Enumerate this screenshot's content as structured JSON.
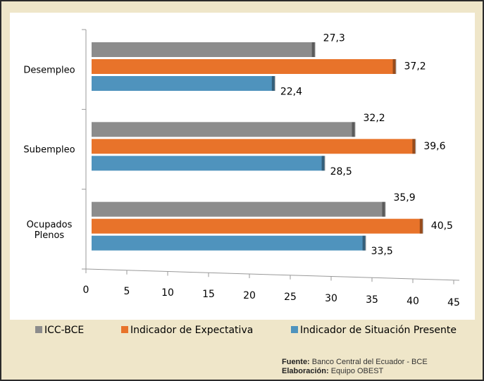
{
  "chart_data": {
    "type": "bar",
    "orientation": "horizontal",
    "categories": [
      "Desempleo",
      "Subempleo",
      "Ocupados Plenos"
    ],
    "series": [
      {
        "name": "ICC-BCE",
        "color": "#8c8c8c",
        "values": [
          27.3,
          32.2,
          35.9
        ],
        "value_labels": [
          "27,3",
          "32,2",
          "35,9"
        ]
      },
      {
        "name": "Indicador de Expectativa",
        "color": "#e8732a",
        "values": [
          37.2,
          39.6,
          40.5
        ],
        "value_labels": [
          "37,2",
          "39,6",
          "40,5"
        ]
      },
      {
        "name": "Indicador de Situación Presente",
        "color": "#4f93bd",
        "values": [
          22.4,
          28.5,
          33.5
        ],
        "value_labels": [
          "22,4",
          "28,5",
          "33,5"
        ]
      }
    ],
    "xlim": [
      0,
      45
    ],
    "xticks": [
      0,
      5,
      10,
      15,
      20,
      25,
      30,
      35,
      40,
      45
    ],
    "legend": "bottom",
    "notes": [
      {
        "label": "Fuente:",
        "text": "Banco Central del Ecuador - BCE"
      },
      {
        "label": "Elaboración:",
        "text": "Equipo OBEST"
      }
    ]
  }
}
